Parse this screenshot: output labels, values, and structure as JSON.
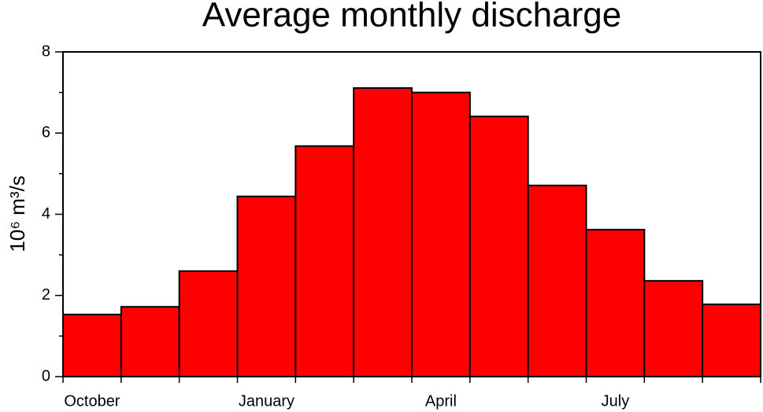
{
  "chart_data": {
    "type": "bar",
    "title": "Average monthly discharge",
    "y_label": "10⁶ m³/s",
    "categories": [
      "October",
      null,
      null,
      "January",
      null,
      null,
      "April",
      null,
      null,
      "July",
      null,
      null
    ],
    "values": [
      1.53,
      1.72,
      2.6,
      4.44,
      5.68,
      7.11,
      7.0,
      6.41,
      4.71,
      3.62,
      2.36,
      1.78
    ],
    "color": "#ff0000",
    "ylim": [
      0,
      8
    ],
    "yticks": [
      0,
      2,
      4,
      6,
      8
    ],
    "yminorticks": [
      1,
      3,
      5,
      7
    ]
  }
}
